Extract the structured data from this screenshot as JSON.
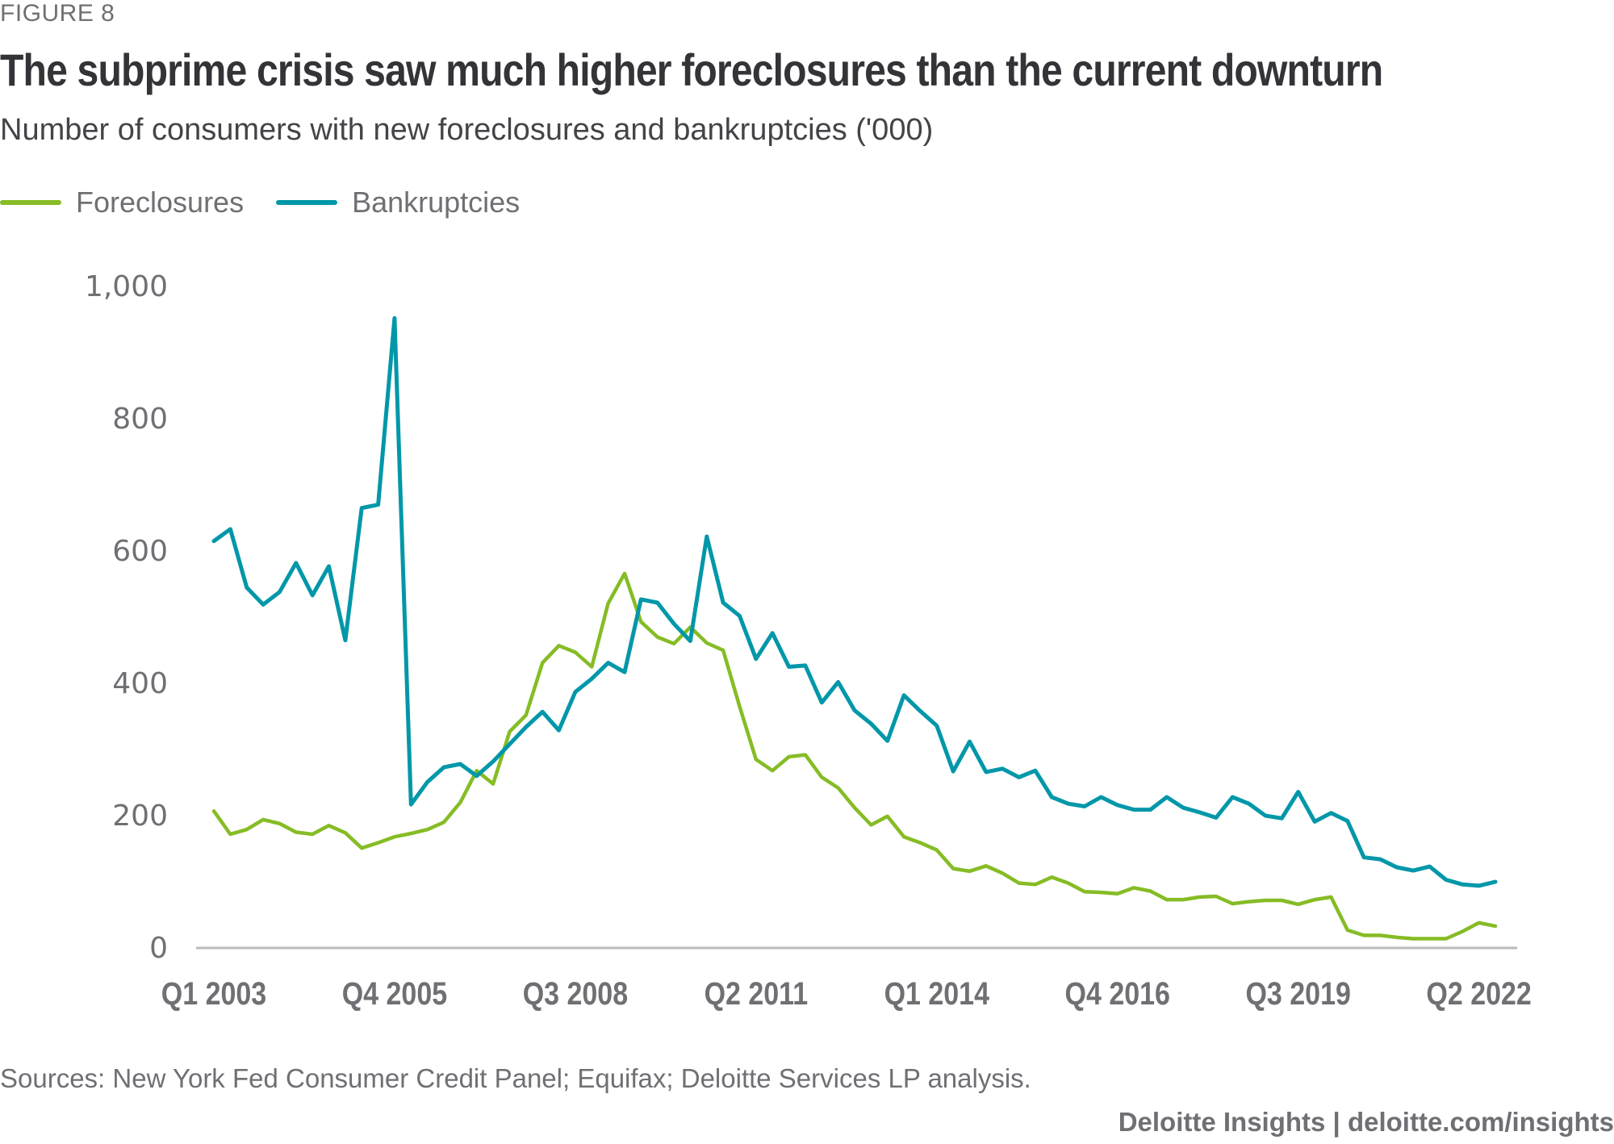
{
  "figure_label": "FIGURE 8",
  "title": "The subprime crisis saw much higher foreclosures than the current downturn",
  "subtitle": "Number of consumers with new foreclosures and bankruptcies ('000)",
  "sources": "Sources: New York Fed Consumer Credit Panel; Equifax; Deloitte Services LP analysis.",
  "credit": "Deloitte Insights | deloitte.com/insights",
  "colors": {
    "foreclosures": "#86bc25",
    "bankruptcies": "#0097a9",
    "axis": "#bbbbbb",
    "tick_text": "#6f6f74"
  },
  "chart_data": {
    "type": "line",
    "title": "The subprime crisis saw much higher foreclosures than the current downturn",
    "subtitle": "Number of consumers with new foreclosures and bankruptcies ('000)",
    "xlabel": "",
    "ylabel": "",
    "ylim": [
      0,
      1000
    ],
    "yticks": [
      0,
      200,
      400,
      600,
      800,
      1000
    ],
    "ytick_labels": [
      "0",
      "200",
      "400",
      "600",
      "800",
      "1,000"
    ],
    "x_start": "Q1 2003",
    "x_end": "Q3 2022",
    "x_count": 79,
    "xticks": [
      {
        "index": 0,
        "label": "Q1 2003"
      },
      {
        "index": 11,
        "label": "Q4 2005"
      },
      {
        "index": 22,
        "label": "Q3 2008"
      },
      {
        "index": 33,
        "label": "Q2 2011"
      },
      {
        "index": 44,
        "label": "Q1 2014"
      },
      {
        "index": 55,
        "label": "Q4 2016"
      },
      {
        "index": 66,
        "label": "Q3 2019"
      },
      {
        "index": 77,
        "label": "Q2 2022"
      }
    ],
    "grid": false,
    "legend_position": "top-left",
    "series": [
      {
        "name": "Foreclosures",
        "color": "#86bc25",
        "values": [
          207,
          172,
          179,
          194,
          188,
          175,
          172,
          185,
          174,
          151,
          159,
          168,
          173,
          179,
          190,
          220,
          268,
          248,
          327,
          352,
          431,
          457,
          447,
          425,
          521,
          566,
          493,
          470,
          460,
          485,
          461,
          450,
          365,
          285,
          268,
          289,
          292,
          258,
          242,
          212,
          186,
          199,
          168,
          159,
          148,
          120,
          116,
          124,
          113,
          98,
          96,
          107,
          98,
          85,
          84,
          82,
          91,
          86,
          73,
          73,
          77,
          78,
          67,
          70,
          72,
          72,
          66,
          73,
          77,
          27,
          19,
          19,
          16,
          14,
          14,
          14,
          25,
          38,
          33
        ]
      },
      {
        "name": "Bankruptcies",
        "color": "#0097a9",
        "values": [
          615,
          633,
          545,
          519,
          538,
          582,
          533,
          577,
          465,
          665,
          670,
          952,
          217,
          251,
          273,
          278,
          260,
          282,
          308,
          334,
          357,
          329,
          387,
          407,
          431,
          417,
          527,
          522,
          490,
          464,
          622,
          522,
          502,
          437,
          476,
          425,
          427,
          371,
          402,
          359,
          339,
          313,
          382,
          358,
          336,
          267,
          312,
          266,
          271,
          258,
          268,
          228,
          218,
          214,
          228,
          216,
          209,
          209,
          228,
          212,
          205,
          197,
          228,
          218,
          200,
          196,
          236,
          191,
          204,
          192,
          137,
          134,
          122,
          117,
          123,
          103,
          96,
          94,
          100
        ]
      }
    ]
  }
}
